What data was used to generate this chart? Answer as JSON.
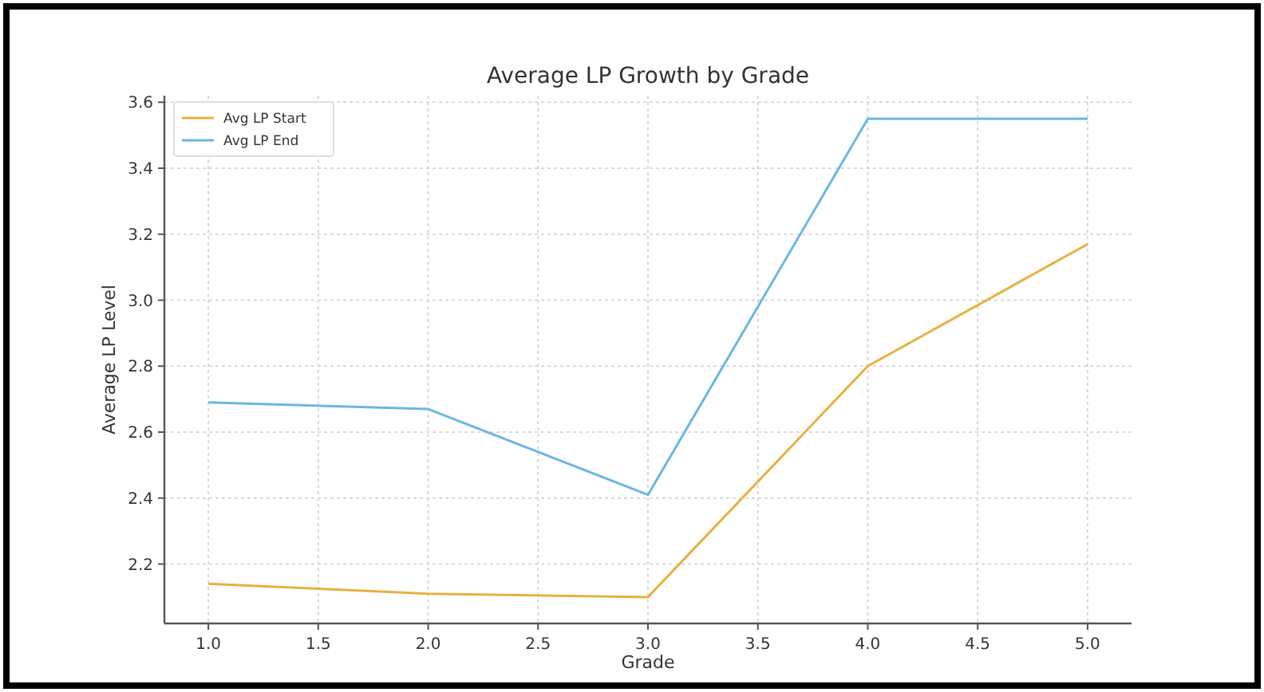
{
  "chart_data": {
    "type": "line",
    "title": "Average LP Growth by Grade",
    "xlabel": "Grade",
    "ylabel": "Average LP Level",
    "x": [
      1,
      2,
      3,
      4,
      5
    ],
    "series": [
      {
        "name": "Avg LP Start",
        "color": "#e8b040",
        "values": [
          2.14,
          2.11,
          2.1,
          2.8,
          3.17
        ]
      },
      {
        "name": "Avg LP End",
        "color": "#6ab8e0",
        "values": [
          2.69,
          2.67,
          2.41,
          3.55,
          3.55
        ]
      }
    ],
    "xlim": [
      0.8,
      5.2
    ],
    "xticks": [
      {
        "value": 1,
        "label": "1.0"
      },
      {
        "value": 1.5,
        "label": "1.5"
      },
      {
        "value": 2,
        "label": "2.0"
      },
      {
        "value": 2.5,
        "label": "2.5"
      },
      {
        "value": 3,
        "label": "3.0"
      },
      {
        "value": 3.5,
        "label": "3.5"
      },
      {
        "value": 4,
        "label": "4.0"
      },
      {
        "value": 4.5,
        "label": "4.5"
      },
      {
        "value": 5,
        "label": "5.0"
      }
    ],
    "ylim": [
      2.02,
      3.62
    ],
    "yticks": [
      {
        "value": 2.2,
        "label": "2.2"
      },
      {
        "value": 2.4,
        "label": "2.4"
      },
      {
        "value": 2.6,
        "label": "2.6"
      },
      {
        "value": 2.8,
        "label": "2.8"
      },
      {
        "value": 3,
        "label": "3.0"
      },
      {
        "value": 3.2,
        "label": "3.2"
      },
      {
        "value": 3.4,
        "label": "3.4"
      },
      {
        "value": 3.6,
        "label": "3.6"
      }
    ],
    "grid": true,
    "legend": "top left",
    "marker": "none",
    "line_style": "solid"
  }
}
